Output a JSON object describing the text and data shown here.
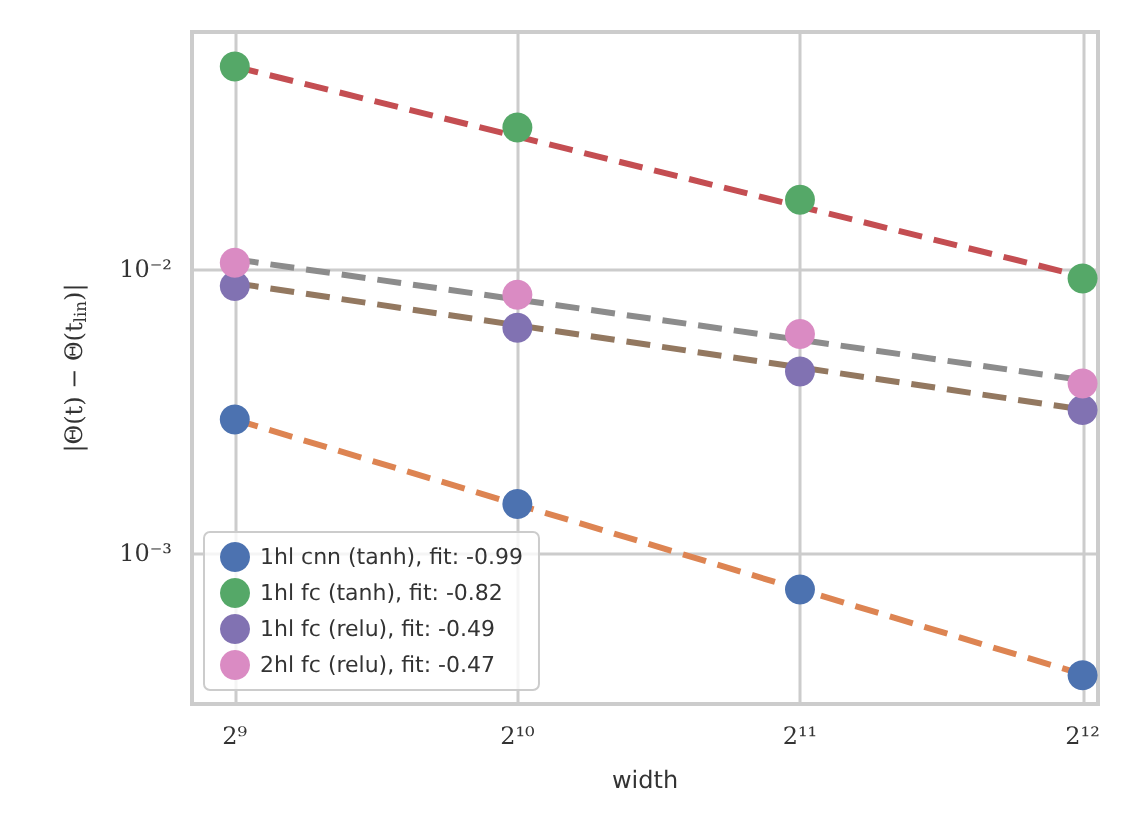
{
  "chart_data": {
    "type": "scatter",
    "xlabel": "width",
    "ylabel": "|Θ(t) − Θ(t$_{lin}$)|",
    "log": "xy",
    "grid": true,
    "legend": "bottom left",
    "marker": "circle",
    "xlim": [
      461,
      4254
    ],
    "ylim": [
      0.000295,
      0.068
    ],
    "xticks": [
      {
        "value": 512,
        "label": "2⁹"
      },
      {
        "value": 1024,
        "label": "2¹⁰"
      },
      {
        "value": 2048,
        "label": "2¹¹"
      },
      {
        "value": 4096,
        "label": "2¹²"
      }
    ],
    "yticks": [
      {
        "value": 0.001,
        "label": "10⁻³"
      },
      {
        "value": 0.01,
        "label": "10⁻²"
      }
    ],
    "series": [
      {
        "type": "line",
        "color": "#dd8452",
        "line_style": "dashed",
        "marker": "none",
        "x": [
          512,
          4096
        ],
        "values": [
          0.00295,
          0.000375
        ]
      },
      {
        "type": "line",
        "color": "#c44e52",
        "line_style": "dashed",
        "marker": "none",
        "x": [
          512,
          4096
        ],
        "values": [
          0.0514,
          0.0094
        ]
      },
      {
        "type": "line",
        "color": "#937860",
        "line_style": "dashed",
        "marker": "none",
        "x": [
          512,
          4096
        ],
        "values": [
          0.0089,
          0.0032
        ]
      },
      {
        "type": "line",
        "color": "#8c8c8c",
        "line_style": "dashed",
        "marker": "none",
        "x": [
          512,
          4096
        ],
        "values": [
          0.0108,
          0.00406
        ]
      },
      {
        "name": "1hl cnn (tanh), fit: -0.99",
        "color": "#4c72b0",
        "x": [
          512,
          1024,
          2048,
          4096
        ],
        "values": [
          0.00295,
          0.00149,
          0.000745,
          0.000372
        ]
      },
      {
        "name": "1hl fc (tanh), fit: -0.82",
        "color": "#55a868",
        "x": [
          512,
          1024,
          2048,
          4096
        ],
        "values": [
          0.0514,
          0.0314,
          0.0175,
          0.00925
        ]
      },
      {
        "name": "1hl fc (relu), fit: -0.49",
        "color": "#8172b2",
        "x": [
          512,
          1024,
          2048,
          4096
        ],
        "values": [
          0.0087,
          0.0062,
          0.00435,
          0.00319
        ]
      },
      {
        "name": "2hl fc (relu), fit: -0.47",
        "color": "#da8bc3",
        "x": [
          512,
          1024,
          2048,
          4096
        ],
        "values": [
          0.0105,
          0.0081,
          0.0059,
          0.00395
        ]
      }
    ]
  }
}
